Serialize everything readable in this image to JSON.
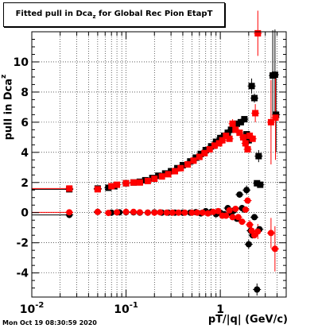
{
  "header": {
    "title_main": "Fitted pull in Dca",
    "title_sub": "z",
    "title_rest": " for Global Rec Pion EtapT"
  },
  "footer": {
    "timestamp": "Mon Oct 19 08:30:59 2020"
  },
  "chart_data": {
    "type": "scatter",
    "title": "Fitted pull in Dcaz for Global Rec Pion EtapT",
    "xlabel": "pT/|q| (GeV/c)",
    "ylabel": "pull in Dca",
    "ylabel_sub": "z",
    "xscale": "log",
    "xlim": [
      0.01,
      5.0
    ],
    "ylim": [
      -5.6,
      12.0
    ],
    "grid": true,
    "y_ticks": [
      -4,
      -2,
      0,
      2,
      4,
      6,
      8,
      10
    ],
    "x_tick_labels": [
      {
        "value": 0.01,
        "base": "10",
        "exp": "-2"
      },
      {
        "value": 0.1,
        "base": "10",
        "exp": "-1"
      },
      {
        "value": 1,
        "base": "1",
        "exp": ""
      }
    ],
    "colors": {
      "black": "#000000",
      "red": "#ff0000"
    },
    "series": [
      {
        "color": "black",
        "marker": "square",
        "points": [
          [
            0.025,
            1.55
          ],
          [
            0.05,
            1.6
          ],
          [
            0.065,
            1.65
          ],
          [
            0.075,
            1.75
          ],
          [
            0.1,
            1.95
          ],
          [
            0.12,
            2.0
          ],
          [
            0.14,
            2.05
          ],
          [
            0.16,
            2.15
          ],
          [
            0.19,
            2.3
          ],
          [
            0.22,
            2.45
          ],
          [
            0.26,
            2.6
          ],
          [
            0.3,
            2.75
          ],
          [
            0.35,
            2.95
          ],
          [
            0.4,
            3.15
          ],
          [
            0.48,
            3.4
          ],
          [
            0.55,
            3.65
          ],
          [
            0.62,
            3.9
          ],
          [
            0.7,
            4.15
          ],
          [
            0.8,
            4.4
          ],
          [
            0.9,
            4.7
          ],
          [
            1.0,
            4.95
          ],
          [
            1.1,
            5.1
          ],
          [
            1.2,
            5.3
          ],
          [
            1.3,
            5.5
          ],
          [
            1.4,
            5.7
          ],
          [
            1.5,
            5.9
          ],
          [
            1.65,
            6.0
          ],
          [
            1.8,
            6.2
          ],
          [
            1.9,
            5.2
          ],
          [
            2.0,
            4.8
          ],
          [
            2.15,
            8.4
          ],
          [
            2.3,
            7.6
          ],
          [
            2.45,
            1.95
          ],
          [
            2.55,
            3.75
          ],
          [
            2.65,
            1.85
          ],
          [
            3.6,
            9.1
          ],
          [
            3.8,
            9.15
          ],
          [
            3.9,
            6.5
          ]
        ],
        "errors": [
          [
            1.9,
            0.2
          ],
          [
            2.15,
            0.5
          ],
          [
            2.3,
            0.3
          ],
          [
            2.55,
            0.4
          ],
          [
            3.6,
            3.0
          ],
          [
            3.8,
            3.0
          ],
          [
            3.9,
            2.5
          ]
        ],
        "line": [
          0.01,
          0.025,
          1.55
        ]
      },
      {
        "color": "red",
        "marker": "square",
        "points": [
          [
            0.025,
            1.6
          ],
          [
            0.05,
            1.55
          ],
          [
            0.07,
            1.75
          ],
          [
            0.08,
            1.85
          ],
          [
            0.1,
            1.95
          ],
          [
            0.12,
            2.0
          ],
          [
            0.14,
            2.0
          ],
          [
            0.17,
            2.1
          ],
          [
            0.2,
            2.25
          ],
          [
            0.24,
            2.4
          ],
          [
            0.28,
            2.55
          ],
          [
            0.33,
            2.75
          ],
          [
            0.38,
            2.95
          ],
          [
            0.45,
            3.2
          ],
          [
            0.52,
            3.45
          ],
          [
            0.6,
            3.7
          ],
          [
            0.68,
            3.95
          ],
          [
            0.77,
            4.2
          ],
          [
            0.87,
            4.45
          ],
          [
            0.97,
            4.6
          ],
          [
            1.05,
            4.8
          ],
          [
            1.15,
            5.1
          ],
          [
            1.25,
            4.9
          ],
          [
            1.35,
            5.9
          ],
          [
            1.45,
            5.5
          ],
          [
            1.6,
            5.3
          ],
          [
            1.75,
            5.0
          ],
          [
            1.85,
            4.6
          ],
          [
            1.95,
            4.2
          ],
          [
            2.05,
            5.1
          ],
          [
            2.2,
            4.9
          ],
          [
            2.35,
            6.6
          ],
          [
            2.5,
            11.9
          ],
          [
            3.45,
            6.0
          ],
          [
            3.85,
            6.3
          ]
        ],
        "errors": [
          [
            1.35,
            0.3
          ],
          [
            2.05,
            0.3
          ],
          [
            2.35,
            0.6
          ],
          [
            2.5,
            1.5
          ],
          [
            3.45,
            2.8
          ],
          [
            3.85,
            2.8
          ]
        ],
        "line": [
          0.01,
          0.025,
          1.6
        ]
      },
      {
        "color": "black",
        "marker": "circle",
        "points": [
          [
            0.025,
            -0.15
          ],
          [
            0.05,
            0.05
          ],
          [
            0.07,
            0.0
          ],
          [
            0.085,
            0.02
          ],
          [
            0.1,
            0.03
          ],
          [
            0.12,
            0.02
          ],
          [
            0.14,
            0.0
          ],
          [
            0.17,
            0.0
          ],
          [
            0.2,
            0.02
          ],
          [
            0.24,
            0.0
          ],
          [
            0.28,
            0.0
          ],
          [
            0.33,
            0.0
          ],
          [
            0.4,
            0.0
          ],
          [
            0.48,
            0.0
          ],
          [
            0.55,
            0.03
          ],
          [
            0.62,
            -0.05
          ],
          [
            0.7,
            0.1
          ],
          [
            0.8,
            0.05
          ],
          [
            0.9,
            -0.1
          ],
          [
            1.0,
            0.0
          ],
          [
            1.1,
            -0.1
          ],
          [
            1.2,
            0.3
          ],
          [
            1.3,
            -0.05
          ],
          [
            1.4,
            0.15
          ],
          [
            1.5,
            -0.4
          ],
          [
            1.6,
            1.2
          ],
          [
            1.7,
            0.3
          ],
          [
            1.8,
            0.2
          ],
          [
            1.9,
            1.5
          ],
          [
            2.0,
            -2.1
          ],
          [
            2.1,
            -1.2
          ],
          [
            2.2,
            -1.5
          ],
          [
            2.3,
            -0.3
          ],
          [
            2.45,
            -5.1
          ],
          [
            2.6,
            -1.1
          ]
        ],
        "errors": [
          [
            1.9,
            0.3
          ],
          [
            2.0,
            0.3
          ],
          [
            2.45,
            0.4
          ]
        ],
        "line": [
          0.01,
          0.025,
          -0.15
        ]
      },
      {
        "color": "red",
        "marker": "circle",
        "points": [
          [
            0.025,
            0.02
          ],
          [
            0.05,
            0.05
          ],
          [
            0.065,
            -0.02
          ],
          [
            0.08,
            0.02
          ],
          [
            0.1,
            0.05
          ],
          [
            0.12,
            0.05
          ],
          [
            0.14,
            0.02
          ],
          [
            0.17,
            0.0
          ],
          [
            0.2,
            0.0
          ],
          [
            0.23,
            0.02
          ],
          [
            0.27,
            0.0
          ],
          [
            0.31,
            0.0
          ],
          [
            0.36,
            0.0
          ],
          [
            0.42,
            0.0
          ],
          [
            0.5,
            0.0
          ],
          [
            0.57,
            0.0
          ],
          [
            0.65,
            0.0
          ],
          [
            0.74,
            -0.05
          ],
          [
            0.84,
            0.05
          ],
          [
            0.95,
            0.1
          ],
          [
            1.05,
            -0.2
          ],
          [
            1.15,
            -0.2
          ],
          [
            1.25,
            0.15
          ],
          [
            1.35,
            -0.3
          ],
          [
            1.45,
            0.25
          ],
          [
            1.55,
            -0.3
          ],
          [
            1.7,
            -0.6
          ],
          [
            1.85,
            0.2
          ],
          [
            1.95,
            0.8
          ],
          [
            2.05,
            -0.8
          ],
          [
            2.15,
            -1.2
          ],
          [
            2.3,
            -1.5
          ],
          [
            2.5,
            -1.25
          ],
          [
            3.45,
            -1.35
          ],
          [
            3.8,
            -2.4
          ]
        ],
        "errors": [
          [
            2.05,
            0.3
          ],
          [
            2.15,
            0.3
          ],
          [
            2.5,
            0.5
          ],
          [
            3.45,
            1.0
          ],
          [
            3.8,
            1.5
          ]
        ],
        "line": [
          0.01,
          0.025,
          0.02
        ]
      }
    ]
  }
}
